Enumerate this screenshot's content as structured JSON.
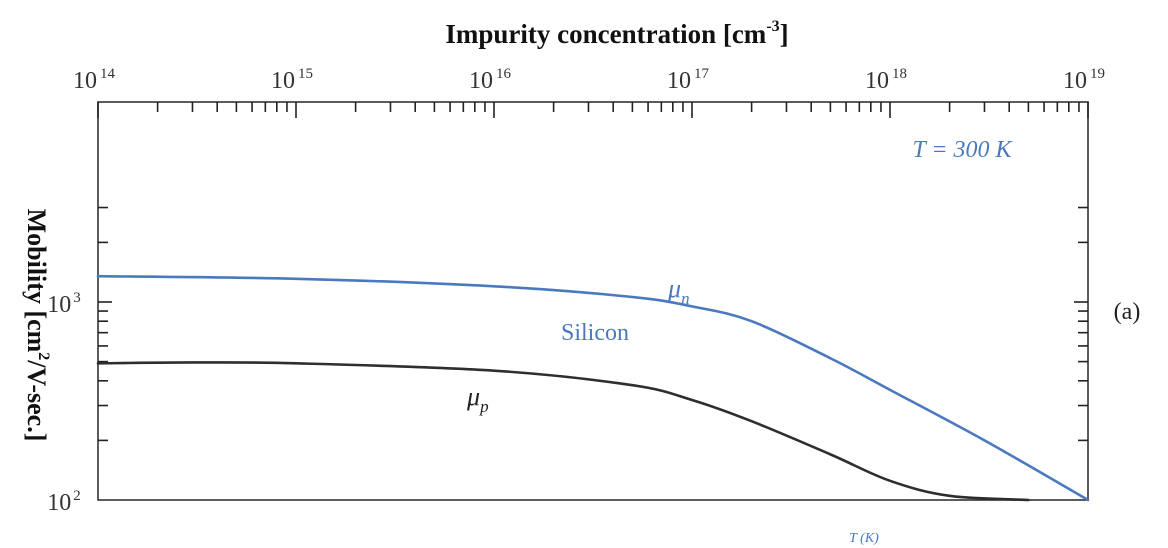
{
  "chart_data": {
    "type": "line",
    "title": "Impurity concentration [cm-3]",
    "xlabel": "Impurity concentration [cm-3]",
    "ylabel": "Mobility [cm2/V-sec.]",
    "x_scale": "log",
    "y_scale": "log",
    "xlim": [
      100000000000000.0,
      1e+19
    ],
    "ylim": [
      100,
      3000
    ],
    "x_tick_labels": [
      {
        "base": "10",
        "exp": "14",
        "value": 100000000000000.0
      },
      {
        "base": "10",
        "exp": "15",
        "value": 1000000000000000.0
      },
      {
        "base": "10",
        "exp": "16",
        "value": 1e+16
      },
      {
        "base": "10",
        "exp": "17",
        "value": 1e+17
      },
      {
        "base": "10",
        "exp": "18",
        "value": 1e+18
      },
      {
        "base": "10",
        "exp": "19",
        "value": 1e+19
      }
    ],
    "y_tick_labels": [
      {
        "base": "10",
        "exp": "2",
        "value": 100
      },
      {
        "base": "10",
        "exp": "3",
        "value": 1000
      }
    ],
    "series": [
      {
        "name": "μn",
        "color": "#4a79bf",
        "x": [
          100000000000000.0,
          1000000000000000.0,
          1e+16,
          5e+16,
          1e+17,
          2e+17,
          5e+17,
          1e+18,
          3e+18,
          1e+19
        ],
        "y": [
          1350,
          1310,
          1200,
          1060,
          950,
          800,
          520,
          360,
          200,
          100
        ]
      },
      {
        "name": "μp",
        "color": "#2e2e2e",
        "x": [
          100000000000000.0,
          300000000000000.0,
          1000000000000000.0,
          1e+16,
          5e+16,
          1e+17,
          2e+17,
          5e+17,
          1e+18,
          2e+18,
          5e+18
        ],
        "y": [
          490,
          495,
          490,
          450,
          380,
          320,
          250,
          170,
          125,
          105,
          100
        ]
      }
    ],
    "annotations": {
      "temperature": "T = 300 K",
      "material": "Silicon",
      "mu_n": {
        "symbol": "μ",
        "sub": "n"
      },
      "mu_p": {
        "symbol": "μ",
        "sub": "p"
      },
      "panel": "(a)",
      "bottom_note": "T (K)"
    },
    "grid": false,
    "legend": "none"
  },
  "text": {
    "xlabel_main": "Impurity concentration [cm",
    "xlabel_sup": "-3",
    "xlabel_end": "]",
    "ylabel_a": "Mobility [cm",
    "ylabel_sup": "2",
    "ylabel_b": "/V-sec.]"
  },
  "colors": {
    "mu_n": "#4a79bf",
    "mu_p": "#2e2e2e",
    "annotation_blue": "#4a79bf",
    "frame": "#333333"
  }
}
